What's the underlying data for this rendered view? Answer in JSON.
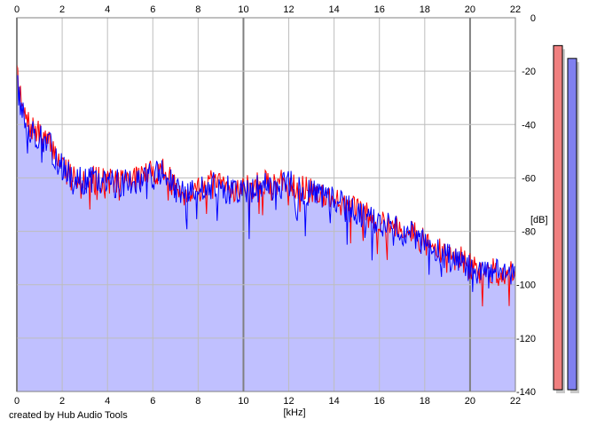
{
  "credit": "created by Hub Audio Tools",
  "colors": {
    "background": "#ffffff",
    "grid": "#bdbdbd",
    "grid_major": "#808080",
    "fill": "#c0c0ff",
    "series_red": "#ff0000",
    "series_blue": "#0000ff",
    "meter_left": "#f08080",
    "meter_right": "#8080f0",
    "meter_shadow": "#c8c8c8"
  },
  "chart_data": {
    "type": "line",
    "x_unit": "[kHz]",
    "y_unit": "[dB]",
    "xlim": [
      0,
      22
    ],
    "ylim": [
      -140,
      0
    ],
    "x_ticks": [
      "0",
      "2",
      "4",
      "6",
      "8",
      "10",
      "12",
      "14",
      "16",
      "18",
      "20",
      "22"
    ],
    "y_ticks": [
      "0",
      "-20",
      "-40",
      "-60",
      "-80",
      "-100",
      "-120",
      "-140"
    ],
    "grid": true,
    "filled": true,
    "series": [
      {
        "color": "red",
        "x": [
          0,
          0.1,
          0.3,
          0.5,
          1,
          1.5,
          2,
          2.5,
          3,
          3.5,
          4,
          4.5,
          5,
          5.5,
          6,
          6.5,
          7,
          7.5,
          8,
          8.5,
          9,
          9.5,
          10,
          10.5,
          11,
          11.5,
          12,
          12.5,
          13,
          13.5,
          14,
          14.5,
          15,
          15.5,
          16,
          16.5,
          17,
          17.5,
          18,
          18.5,
          19,
          19.5,
          20,
          20.5,
          21,
          21.5,
          22
        ],
        "y": [
          -15,
          -28,
          -36,
          -40,
          -44,
          -48,
          -55,
          -59,
          -60,
          -60,
          -61,
          -61,
          -60,
          -59,
          -58,
          -57,
          -64,
          -66,
          -63,
          -62,
          -63,
          -64,
          -64,
          -63,
          -62,
          -62,
          -61,
          -64,
          -65,
          -66,
          -68,
          -70,
          -72,
          -74,
          -76,
          -77,
          -79,
          -81,
          -84,
          -87,
          -89,
          -90,
          -93,
          -96,
          -95,
          -95,
          -96
        ]
      },
      {
        "color": "blue",
        "x": [
          0,
          0.1,
          0.3,
          0.5,
          1,
          1.5,
          2,
          2.5,
          3,
          3.5,
          4,
          4.5,
          5,
          5.5,
          6,
          6.5,
          7,
          7.5,
          8,
          8.5,
          9,
          9.5,
          10,
          10.5,
          11,
          11.5,
          12,
          12.5,
          13,
          13.5,
          14,
          14.5,
          15,
          15.5,
          16,
          16.5,
          17,
          17.5,
          18,
          18.5,
          19,
          19.5,
          20,
          20.5,
          21,
          21.5,
          22
        ],
        "y": [
          -20,
          -30,
          -38,
          -41,
          -45,
          -49,
          -56,
          -61,
          -61,
          -61,
          -62,
          -62,
          -61,
          -60,
          -59,
          -58,
          -65,
          -67,
          -64,
          -63,
          -64,
          -65,
          -65,
          -64,
          -63,
          -63,
          -62,
          -65,
          -66,
          -67,
          -69,
          -71,
          -73,
          -75,
          -77,
          -78,
          -80,
          -82,
          -85,
          -88,
          -90,
          -91,
          -94,
          -96,
          -96,
          -95,
          -97
        ]
      }
    ],
    "level_meters": [
      {
        "channel": "left",
        "level_db": -6
      },
      {
        "channel": "right",
        "level_db": -11
      }
    ]
  }
}
